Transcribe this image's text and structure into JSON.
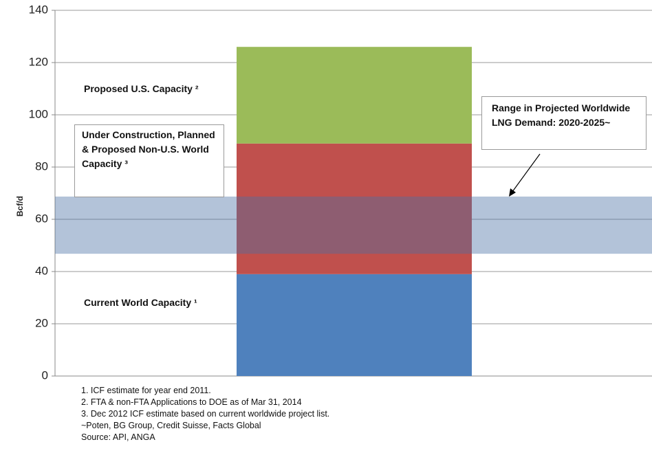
{
  "chart_data": {
    "type": "stacked_bar",
    "y_axis_label": "Bcf/d",
    "categories": [
      null
    ],
    "series": [
      {
        "name": "Current World Capacity ¹",
        "color": "#4f81bd",
        "values": [
          39
        ]
      },
      {
        "name": "Under Construction, Planned & Proposed Non-U.S. World Capacity ³",
        "color": "#c0504d",
        "values": [
          50
        ]
      },
      {
        "name": "Proposed U.S. Capacity ²",
        "color": "#9bbb59",
        "values": [
          37
        ]
      }
    ],
    "demand_range": {
      "label": "Range in Projected Worldwide LNG Demand: 2020-2025~",
      "range": [
        46.8,
        68.7
      ],
      "color": "#4a6fa5"
    },
    "ylim": [
      0,
      140
    ],
    "yticks": [
      0,
      20,
      40,
      60,
      80,
      100,
      120,
      140
    ],
    "grid": true,
    "notes": [
      "1. ICF estimate for year end 2011.",
      "2. FTA & non-FTA Applications to DOE as of Mar 31, 2014",
      "3. Dec 2012 ICF estimate based on current worldwide project list.",
      "~Poten, BG Group, Credit Suisse, Facts Global",
      "Source: API, ANGA"
    ]
  }
}
